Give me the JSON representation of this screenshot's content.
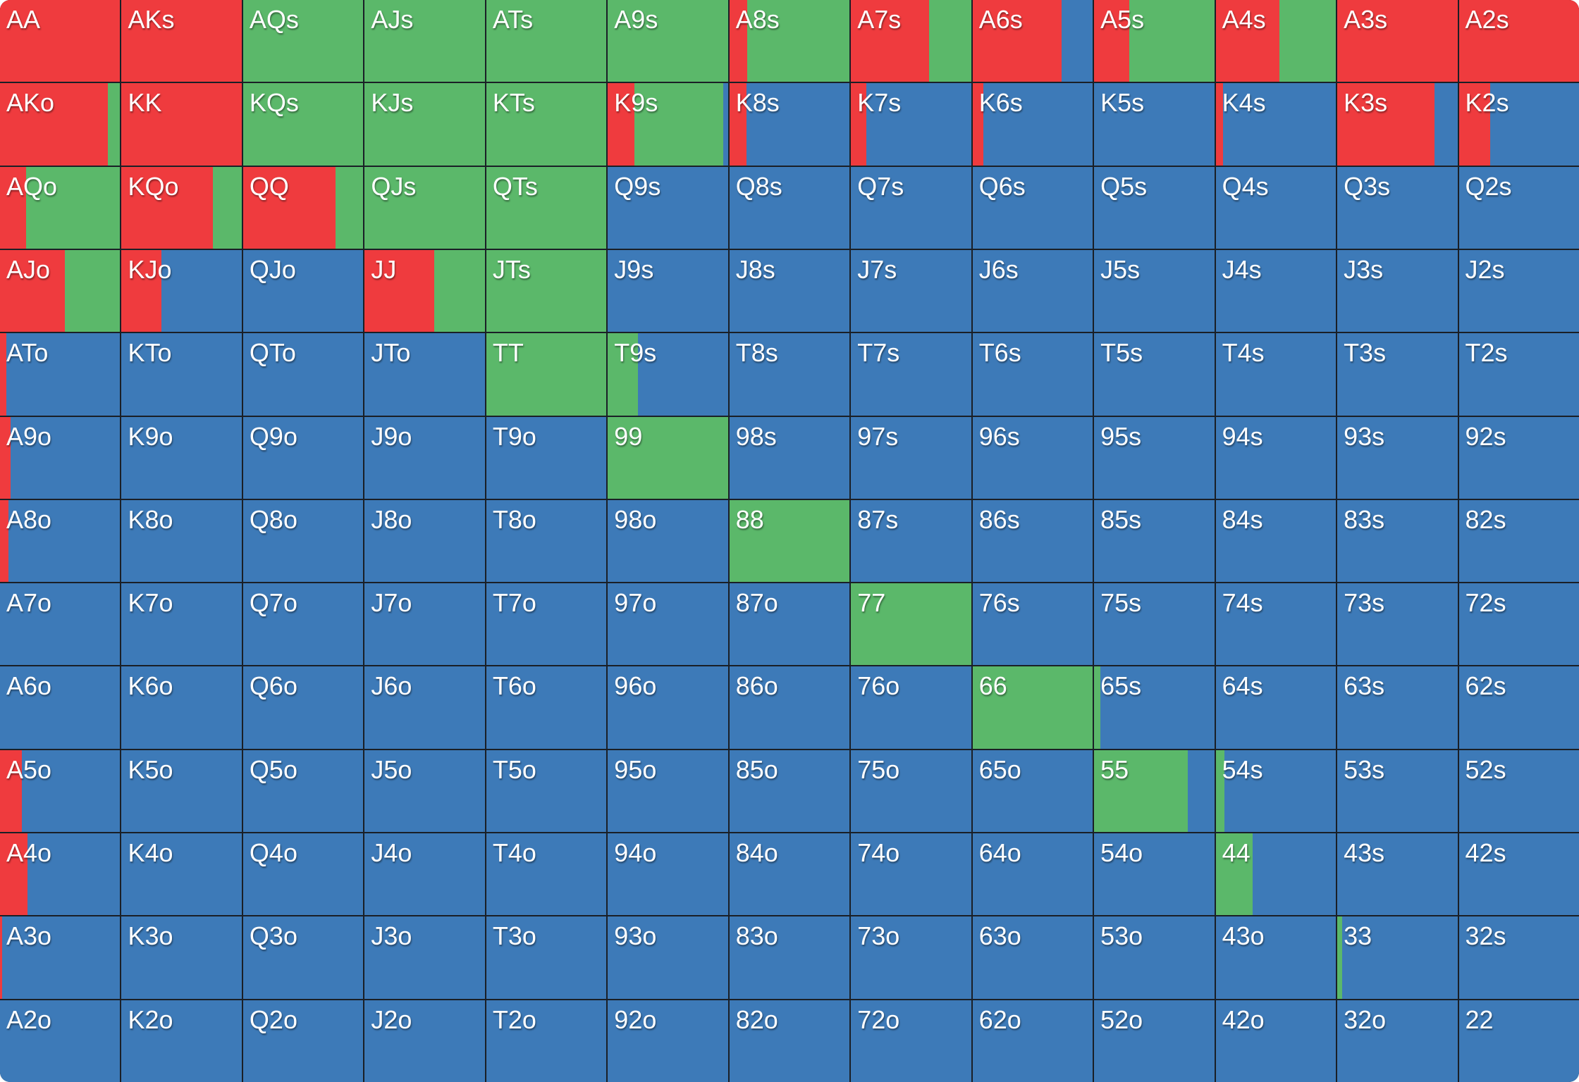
{
  "colors": {
    "red": "#ef3b3e",
    "green": "#5bb86a",
    "blue": "#3d7ab8",
    "grid_line": "#1a1f26"
  },
  "chart_data": {
    "type": "heatmap",
    "title": "",
    "description": "13x13 poker starting-hand grid; each cell split horizontally into action-frequency segments (red, green, blue), values in percent",
    "ranks": [
      "A",
      "K",
      "Q",
      "J",
      "T",
      "9",
      "8",
      "7",
      "6",
      "5",
      "4",
      "3",
      "2"
    ],
    "series_names": [
      "red",
      "green",
      "blue"
    ],
    "rows": [
      [
        {
          "hand": "AA",
          "red": 100,
          "green": 0,
          "blue": 0
        },
        {
          "hand": "AKs",
          "red": 100,
          "green": 0,
          "blue": 0
        },
        {
          "hand": "AQs",
          "red": 0,
          "green": 100,
          "blue": 0
        },
        {
          "hand": "AJs",
          "red": 0,
          "green": 100,
          "blue": 0
        },
        {
          "hand": "ATs",
          "red": 0,
          "green": 100,
          "blue": 0
        },
        {
          "hand": "A9s",
          "red": 0,
          "green": 100,
          "blue": 0
        },
        {
          "hand": "A8s",
          "red": 15,
          "green": 85,
          "blue": 0
        },
        {
          "hand": "A7s",
          "red": 65,
          "green": 35,
          "blue": 0
        },
        {
          "hand": "A6s",
          "red": 74,
          "green": 0,
          "blue": 26
        },
        {
          "hand": "A5s",
          "red": 29,
          "green": 71,
          "blue": 0
        },
        {
          "hand": "A4s",
          "red": 53,
          "green": 47,
          "blue": 0
        },
        {
          "hand": "A3s",
          "red": 100,
          "green": 0,
          "blue": 0
        },
        {
          "hand": "A2s",
          "red": 100,
          "green": 0,
          "blue": 0
        }
      ],
      [
        {
          "hand": "AKo",
          "red": 90,
          "green": 10,
          "blue": 0
        },
        {
          "hand": "KK",
          "red": 100,
          "green": 0,
          "blue": 0
        },
        {
          "hand": "KQs",
          "red": 0,
          "green": 100,
          "blue": 0
        },
        {
          "hand": "KJs",
          "red": 0,
          "green": 100,
          "blue": 0
        },
        {
          "hand": "KTs",
          "red": 0,
          "green": 100,
          "blue": 0
        },
        {
          "hand": "K9s",
          "red": 22,
          "green": 74,
          "blue": 4
        },
        {
          "hand": "K8s",
          "red": 14,
          "green": 0,
          "blue": 86
        },
        {
          "hand": "K7s",
          "red": 13,
          "green": 0,
          "blue": 87
        },
        {
          "hand": "K6s",
          "red": 9,
          "green": 0,
          "blue": 91
        },
        {
          "hand": "K5s",
          "red": 0,
          "green": 0,
          "blue": 100
        },
        {
          "hand": "K4s",
          "red": 6,
          "green": 0,
          "blue": 94
        },
        {
          "hand": "K3s",
          "red": 81,
          "green": 0,
          "blue": 19
        },
        {
          "hand": "K2s",
          "red": 26,
          "green": 0,
          "blue": 74
        }
      ],
      [
        {
          "hand": "AQo",
          "red": 22,
          "green": 78,
          "blue": 0
        },
        {
          "hand": "KQo",
          "red": 76,
          "green": 24,
          "blue": 0
        },
        {
          "hand": "QQ",
          "red": 77,
          "green": 23,
          "blue": 0
        },
        {
          "hand": "QJs",
          "red": 0,
          "green": 100,
          "blue": 0
        },
        {
          "hand": "QTs",
          "red": 0,
          "green": 100,
          "blue": 0
        },
        {
          "hand": "Q9s",
          "red": 0,
          "green": 0,
          "blue": 100
        },
        {
          "hand": "Q8s",
          "red": 0,
          "green": 0,
          "blue": 100
        },
        {
          "hand": "Q7s",
          "red": 0,
          "green": 0,
          "blue": 100
        },
        {
          "hand": "Q6s",
          "red": 0,
          "green": 0,
          "blue": 100
        },
        {
          "hand": "Q5s",
          "red": 0,
          "green": 0,
          "blue": 100
        },
        {
          "hand": "Q4s",
          "red": 0,
          "green": 0,
          "blue": 100
        },
        {
          "hand": "Q3s",
          "red": 0,
          "green": 0,
          "blue": 100
        },
        {
          "hand": "Q2s",
          "red": 0,
          "green": 0,
          "blue": 100
        }
      ],
      [
        {
          "hand": "AJo",
          "red": 54,
          "green": 46,
          "blue": 0
        },
        {
          "hand": "KJo",
          "red": 33,
          "green": 0,
          "blue": 67
        },
        {
          "hand": "QJo",
          "red": 0,
          "green": 0,
          "blue": 100
        },
        {
          "hand": "JJ",
          "red": 58,
          "green": 42,
          "blue": 0
        },
        {
          "hand": "JTs",
          "red": 0,
          "green": 100,
          "blue": 0
        },
        {
          "hand": "J9s",
          "red": 0,
          "green": 0,
          "blue": 100
        },
        {
          "hand": "J8s",
          "red": 0,
          "green": 0,
          "blue": 100
        },
        {
          "hand": "J7s",
          "red": 0,
          "green": 0,
          "blue": 100
        },
        {
          "hand": "J6s",
          "red": 0,
          "green": 0,
          "blue": 100
        },
        {
          "hand": "J5s",
          "red": 0,
          "green": 0,
          "blue": 100
        },
        {
          "hand": "J4s",
          "red": 0,
          "green": 0,
          "blue": 100
        },
        {
          "hand": "J3s",
          "red": 0,
          "green": 0,
          "blue": 100
        },
        {
          "hand": "J2s",
          "red": 0,
          "green": 0,
          "blue": 100
        }
      ],
      [
        {
          "hand": "ATo",
          "red": 5,
          "green": 0,
          "blue": 95
        },
        {
          "hand": "KTo",
          "red": 0,
          "green": 0,
          "blue": 100
        },
        {
          "hand": "QTo",
          "red": 0,
          "green": 0,
          "blue": 100
        },
        {
          "hand": "JTo",
          "red": 0,
          "green": 0,
          "blue": 100
        },
        {
          "hand": "TT",
          "red": 0,
          "green": 100,
          "blue": 0
        },
        {
          "hand": "T9s",
          "red": 0,
          "green": 25,
          "blue": 75
        },
        {
          "hand": "T8s",
          "red": 0,
          "green": 0,
          "blue": 100
        },
        {
          "hand": "T7s",
          "red": 0,
          "green": 0,
          "blue": 100
        },
        {
          "hand": "T6s",
          "red": 0,
          "green": 0,
          "blue": 100
        },
        {
          "hand": "T5s",
          "red": 0,
          "green": 0,
          "blue": 100
        },
        {
          "hand": "T4s",
          "red": 0,
          "green": 0,
          "blue": 100
        },
        {
          "hand": "T3s",
          "red": 0,
          "green": 0,
          "blue": 100
        },
        {
          "hand": "T2s",
          "red": 0,
          "green": 0,
          "blue": 100
        }
      ],
      [
        {
          "hand": "A9o",
          "red": 9,
          "green": 0,
          "blue": 91
        },
        {
          "hand": "K9o",
          "red": 0,
          "green": 0,
          "blue": 100
        },
        {
          "hand": "Q9o",
          "red": 0,
          "green": 0,
          "blue": 100
        },
        {
          "hand": "J9o",
          "red": 0,
          "green": 0,
          "blue": 100
        },
        {
          "hand": "T9o",
          "red": 0,
          "green": 0,
          "blue": 100
        },
        {
          "hand": "99",
          "red": 0,
          "green": 100,
          "blue": 0
        },
        {
          "hand": "98s",
          "red": 0,
          "green": 0,
          "blue": 100
        },
        {
          "hand": "97s",
          "red": 0,
          "green": 0,
          "blue": 100
        },
        {
          "hand": "96s",
          "red": 0,
          "green": 0,
          "blue": 100
        },
        {
          "hand": "95s",
          "red": 0,
          "green": 0,
          "blue": 100
        },
        {
          "hand": "94s",
          "red": 0,
          "green": 0,
          "blue": 100
        },
        {
          "hand": "93s",
          "red": 0,
          "green": 0,
          "blue": 100
        },
        {
          "hand": "92s",
          "red": 0,
          "green": 0,
          "blue": 100
        }
      ],
      [
        {
          "hand": "A8o",
          "red": 7,
          "green": 0,
          "blue": 93
        },
        {
          "hand": "K8o",
          "red": 0,
          "green": 0,
          "blue": 100
        },
        {
          "hand": "Q8o",
          "red": 0,
          "green": 0,
          "blue": 100
        },
        {
          "hand": "J8o",
          "red": 0,
          "green": 0,
          "blue": 100
        },
        {
          "hand": "T8o",
          "red": 0,
          "green": 0,
          "blue": 100
        },
        {
          "hand": "98o",
          "red": 0,
          "green": 0,
          "blue": 100
        },
        {
          "hand": "88",
          "red": 0,
          "green": 100,
          "blue": 0
        },
        {
          "hand": "87s",
          "red": 0,
          "green": 0,
          "blue": 100
        },
        {
          "hand": "86s",
          "red": 0,
          "green": 0,
          "blue": 100
        },
        {
          "hand": "85s",
          "red": 0,
          "green": 0,
          "blue": 100
        },
        {
          "hand": "84s",
          "red": 0,
          "green": 0,
          "blue": 100
        },
        {
          "hand": "83s",
          "red": 0,
          "green": 0,
          "blue": 100
        },
        {
          "hand": "82s",
          "red": 0,
          "green": 0,
          "blue": 100
        }
      ],
      [
        {
          "hand": "A7o",
          "red": 0,
          "green": 0,
          "blue": 100
        },
        {
          "hand": "K7o",
          "red": 0,
          "green": 0,
          "blue": 100
        },
        {
          "hand": "Q7o",
          "red": 0,
          "green": 0,
          "blue": 100
        },
        {
          "hand": "J7o",
          "red": 0,
          "green": 0,
          "blue": 100
        },
        {
          "hand": "T7o",
          "red": 0,
          "green": 0,
          "blue": 100
        },
        {
          "hand": "97o",
          "red": 0,
          "green": 0,
          "blue": 100
        },
        {
          "hand": "87o",
          "red": 0,
          "green": 0,
          "blue": 100
        },
        {
          "hand": "77",
          "red": 0,
          "green": 100,
          "blue": 0
        },
        {
          "hand": "76s",
          "red": 0,
          "green": 0,
          "blue": 100
        },
        {
          "hand": "75s",
          "red": 0,
          "green": 0,
          "blue": 100
        },
        {
          "hand": "74s",
          "red": 0,
          "green": 0,
          "blue": 100
        },
        {
          "hand": "73s",
          "red": 0,
          "green": 0,
          "blue": 100
        },
        {
          "hand": "72s",
          "red": 0,
          "green": 0,
          "blue": 100
        }
      ],
      [
        {
          "hand": "A6o",
          "red": 0,
          "green": 0,
          "blue": 100
        },
        {
          "hand": "K6o",
          "red": 0,
          "green": 0,
          "blue": 100
        },
        {
          "hand": "Q6o",
          "red": 0,
          "green": 0,
          "blue": 100
        },
        {
          "hand": "J6o",
          "red": 0,
          "green": 0,
          "blue": 100
        },
        {
          "hand": "T6o",
          "red": 0,
          "green": 0,
          "blue": 100
        },
        {
          "hand": "96o",
          "red": 0,
          "green": 0,
          "blue": 100
        },
        {
          "hand": "86o",
          "red": 0,
          "green": 0,
          "blue": 100
        },
        {
          "hand": "76o",
          "red": 0,
          "green": 0,
          "blue": 100
        },
        {
          "hand": "66",
          "red": 0,
          "green": 100,
          "blue": 0
        },
        {
          "hand": "65s",
          "red": 0,
          "green": 5,
          "blue": 95
        },
        {
          "hand": "64s",
          "red": 0,
          "green": 0,
          "blue": 100
        },
        {
          "hand": "63s",
          "red": 0,
          "green": 0,
          "blue": 100
        },
        {
          "hand": "62s",
          "red": 0,
          "green": 0,
          "blue": 100
        }
      ],
      [
        {
          "hand": "A5o",
          "red": 18,
          "green": 0,
          "blue": 82
        },
        {
          "hand": "K5o",
          "red": 0,
          "green": 0,
          "blue": 100
        },
        {
          "hand": "Q5o",
          "red": 0,
          "green": 0,
          "blue": 100
        },
        {
          "hand": "J5o",
          "red": 0,
          "green": 0,
          "blue": 100
        },
        {
          "hand": "T5o",
          "red": 0,
          "green": 0,
          "blue": 100
        },
        {
          "hand": "95o",
          "red": 0,
          "green": 0,
          "blue": 100
        },
        {
          "hand": "85o",
          "red": 0,
          "green": 0,
          "blue": 100
        },
        {
          "hand": "75o",
          "red": 0,
          "green": 0,
          "blue": 100
        },
        {
          "hand": "65o",
          "red": 0,
          "green": 0,
          "blue": 100
        },
        {
          "hand": "55",
          "red": 0,
          "green": 78,
          "blue": 22
        },
        {
          "hand": "54s",
          "red": 0,
          "green": 7,
          "blue": 93
        },
        {
          "hand": "53s",
          "red": 0,
          "green": 0,
          "blue": 100
        },
        {
          "hand": "52s",
          "red": 0,
          "green": 0,
          "blue": 100
        }
      ],
      [
        {
          "hand": "A4o",
          "red": 23,
          "green": 0,
          "blue": 77
        },
        {
          "hand": "K4o",
          "red": 0,
          "green": 0,
          "blue": 100
        },
        {
          "hand": "Q4o",
          "red": 0,
          "green": 0,
          "blue": 100
        },
        {
          "hand": "J4o",
          "red": 0,
          "green": 0,
          "blue": 100
        },
        {
          "hand": "T4o",
          "red": 0,
          "green": 0,
          "blue": 100
        },
        {
          "hand": "94o",
          "red": 0,
          "green": 0,
          "blue": 100
        },
        {
          "hand": "84o",
          "red": 0,
          "green": 0,
          "blue": 100
        },
        {
          "hand": "74o",
          "red": 0,
          "green": 0,
          "blue": 100
        },
        {
          "hand": "64o",
          "red": 0,
          "green": 0,
          "blue": 100
        },
        {
          "hand": "54o",
          "red": 0,
          "green": 0,
          "blue": 100
        },
        {
          "hand": "44",
          "red": 0,
          "green": 31,
          "blue": 69
        },
        {
          "hand": "43s",
          "red": 0,
          "green": 0,
          "blue": 100
        },
        {
          "hand": "42s",
          "red": 0,
          "green": 0,
          "blue": 100
        }
      ],
      [
        {
          "hand": "A3o",
          "red": 2,
          "green": 0,
          "blue": 98
        },
        {
          "hand": "K3o",
          "red": 0,
          "green": 0,
          "blue": 100
        },
        {
          "hand": "Q3o",
          "red": 0,
          "green": 0,
          "blue": 100
        },
        {
          "hand": "J3o",
          "red": 0,
          "green": 0,
          "blue": 100
        },
        {
          "hand": "T3o",
          "red": 0,
          "green": 0,
          "blue": 100
        },
        {
          "hand": "93o",
          "red": 0,
          "green": 0,
          "blue": 100
        },
        {
          "hand": "83o",
          "red": 0,
          "green": 0,
          "blue": 100
        },
        {
          "hand": "73o",
          "red": 0,
          "green": 0,
          "blue": 100
        },
        {
          "hand": "63o",
          "red": 0,
          "green": 0,
          "blue": 100
        },
        {
          "hand": "53o",
          "red": 0,
          "green": 0,
          "blue": 100
        },
        {
          "hand": "43o",
          "red": 0,
          "green": 0,
          "blue": 100
        },
        {
          "hand": "33",
          "red": 0,
          "green": 4,
          "blue": 96
        },
        {
          "hand": "32s",
          "red": 0,
          "green": 0,
          "blue": 100
        }
      ],
      [
        {
          "hand": "A2o",
          "red": 0,
          "green": 0,
          "blue": 100
        },
        {
          "hand": "K2o",
          "red": 0,
          "green": 0,
          "blue": 100
        },
        {
          "hand": "Q2o",
          "red": 0,
          "green": 0,
          "blue": 100
        },
        {
          "hand": "J2o",
          "red": 0,
          "green": 0,
          "blue": 100
        },
        {
          "hand": "T2o",
          "red": 0,
          "green": 0,
          "blue": 100
        },
        {
          "hand": "92o",
          "red": 0,
          "green": 0,
          "blue": 100
        },
        {
          "hand": "82o",
          "red": 0,
          "green": 0,
          "blue": 100
        },
        {
          "hand": "72o",
          "red": 0,
          "green": 0,
          "blue": 100
        },
        {
          "hand": "62o",
          "red": 0,
          "green": 0,
          "blue": 100
        },
        {
          "hand": "52o",
          "red": 0,
          "green": 0,
          "blue": 100
        },
        {
          "hand": "42o",
          "red": 0,
          "green": 0,
          "blue": 100
        },
        {
          "hand": "32o",
          "red": 0,
          "green": 0,
          "blue": 100
        },
        {
          "hand": "22",
          "red": 0,
          "green": 0,
          "blue": 100
        }
      ]
    ]
  }
}
